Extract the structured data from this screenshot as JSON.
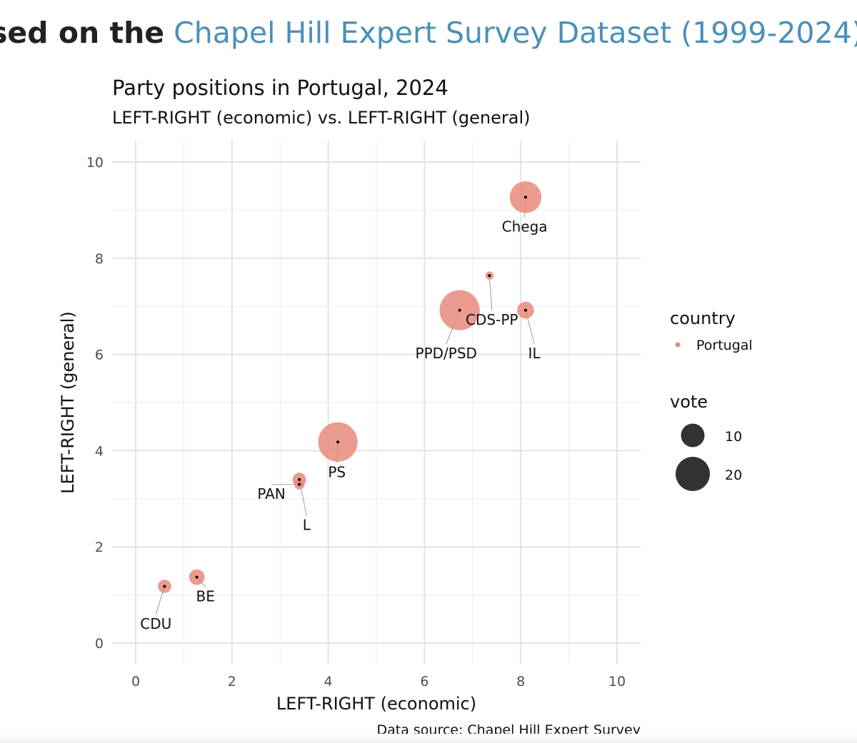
{
  "banner": {
    "bold_text": "sed on the",
    "link_text": "Chapel Hill Expert Survey Dataset (1999-2024)"
  },
  "chart_data": {
    "type": "scatter",
    "title": "Party positions in Portugal, 2024",
    "subtitle": "LEFT-RIGHT (economic) vs. LEFT-RIGHT (general)",
    "xlabel": "LEFT-RIGHT (economic)",
    "ylabel": "LEFT-RIGHT (general)",
    "xlim": [
      0,
      10
    ],
    "ylim": [
      0,
      10
    ],
    "x_ticks": [
      "0",
      "2",
      "4",
      "6",
      "8",
      "10"
    ],
    "y_ticks": [
      "0",
      "2",
      "4",
      "6",
      "8",
      "10"
    ],
    "grid": true,
    "caption": "Data source: Chapel Hill Expert Survey",
    "point_color": "#e8897d",
    "points": [
      {
        "party": "Chega",
        "x": 8.1,
        "y": 9.27,
        "vote": 18.1,
        "label_x": 8.08,
        "label_y": 8.55
      },
      {
        "party": "CDS-PP",
        "x": 7.35,
        "y": 7.64,
        "vote": 1.2,
        "label_x": 7.4,
        "label_y": 6.62
      },
      {
        "party": "IL",
        "x": 8.1,
        "y": 6.92,
        "vote": 5.1,
        "label_x": 8.28,
        "label_y": 5.92
      },
      {
        "party": "PPD/PSD",
        "x": 6.73,
        "y": 6.92,
        "vote": 29.0,
        "label_x": 6.45,
        "label_y": 5.92
      },
      {
        "party": "PS",
        "x": 4.2,
        "y": 4.18,
        "vote": 28.0,
        "label_x": 4.18,
        "label_y": 3.45
      },
      {
        "party": "PAN",
        "x": 3.4,
        "y": 3.3,
        "vote": 1.9,
        "label_x": 2.82,
        "label_y": 3.0
      },
      {
        "party": "L",
        "x": 3.4,
        "y": 3.4,
        "vote": 3.3,
        "label_x": 3.55,
        "label_y": 2.35
      },
      {
        "party": "BE",
        "x": 1.27,
        "y": 1.37,
        "vote": 4.4,
        "label_x": 1.45,
        "label_y": 0.87
      },
      {
        "party": "CDU",
        "x": 0.6,
        "y": 1.18,
        "vote": 3.2,
        "label_x": 0.42,
        "label_y": 0.3
      }
    ],
    "legend": {
      "country_title": "country",
      "country_items": [
        "Portugal"
      ],
      "vote_title": "vote",
      "vote_items": [
        10,
        20
      ]
    }
  }
}
